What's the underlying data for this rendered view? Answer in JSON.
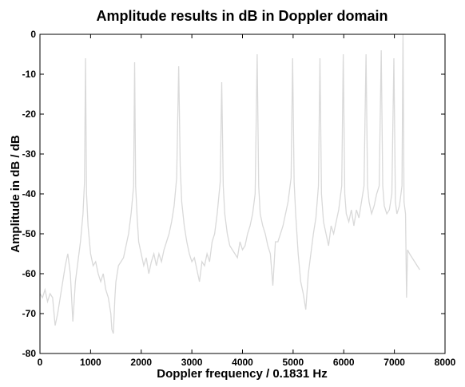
{
  "chart_data": {
    "type": "line",
    "title": "Amplitude results in dB in Doppler domain",
    "xlabel": "Doppler frequency / 0.1831 Hz",
    "ylabel": "Amplitude in dB / dB",
    "x": [
      0,
      50,
      100,
      150,
      200,
      250,
      300,
      350,
      400,
      450,
      500,
      550,
      600,
      650,
      700,
      750,
      800,
      850,
      880,
      900,
      920,
      950,
      1000,
      1050,
      1100,
      1150,
      1200,
      1250,
      1300,
      1350,
      1400,
      1420,
      1450,
      1480,
      1500,
      1550,
      1600,
      1650,
      1700,
      1750,
      1800,
      1850,
      1870,
      1890,
      1920,
      1950,
      2000,
      2050,
      2100,
      2150,
      2200,
      2250,
      2300,
      2350,
      2400,
      2450,
      2500,
      2550,
      2600,
      2650,
      2700,
      2740,
      2770,
      2800,
      2850,
      2900,
      2950,
      3000,
      3050,
      3100,
      3150,
      3200,
      3250,
      3300,
      3350,
      3400,
      3450,
      3500,
      3560,
      3590,
      3620,
      3650,
      3700,
      3750,
      3800,
      3850,
      3900,
      3950,
      4000,
      4050,
      4100,
      4150,
      4200,
      4250,
      4290,
      4320,
      4350,
      4400,
      4450,
      4500,
      4550,
      4600,
      4650,
      4700,
      4750,
      4800,
      4850,
      4900,
      4960,
      4990,
      5020,
      5050,
      5100,
      5150,
      5200,
      5250,
      5300,
      5350,
      5400,
      5450,
      5500,
      5530,
      5560,
      5600,
      5650,
      5700,
      5750,
      5800,
      5850,
      5900,
      5960,
      5990,
      6020,
      6050,
      6100,
      6150,
      6200,
      6250,
      6300,
      6350,
      6400,
      6440,
      6470,
      6500,
      6550,
      6600,
      6650,
      6700,
      6740,
      6770,
      6800,
      6850,
      6900,
      6950,
      6990,
      7020,
      7050,
      7100,
      7150,
      7170,
      7190,
      7220,
      7240,
      7260,
      7300,
      7350,
      7400,
      7450,
      7500
    ],
    "series": [
      {
        "name": "Amplitude",
        "color": "#d9d9d9",
        "values": [
          -65,
          -66,
          -64,
          -67,
          -65,
          -66,
          -73,
          -70,
          -66,
          -62,
          -58,
          -55,
          -60,
          -72,
          -62,
          -57,
          -52,
          -45,
          -37,
          -6,
          -40,
          -48,
          -55,
          -58,
          -57,
          -60,
          -62,
          -60,
          -64,
          -66,
          -70,
          -74,
          -75,
          -66,
          -62,
          -58,
          -57,
          -56,
          -53,
          -50,
          -45,
          -38,
          -7,
          -38,
          -46,
          -52,
          -55,
          -58,
          -56,
          -60,
          -57,
          -55,
          -58,
          -55,
          -57,
          -54,
          -52,
          -50,
          -47,
          -43,
          -36,
          -8,
          -33,
          -42,
          -48,
          -52,
          -55,
          -57,
          -56,
          -59,
          -62,
          -57,
          -58,
          -55,
          -57,
          -52,
          -50,
          -45,
          -37,
          -12,
          -38,
          -45,
          -50,
          -53,
          -54,
          -55,
          -56,
          -52,
          -54,
          -53,
          -50,
          -48,
          -45,
          -40,
          -5,
          -38,
          -45,
          -48,
          -50,
          -53,
          -55,
          -63,
          -52,
          -52,
          -50,
          -48,
          -45,
          -42,
          -36,
          -6,
          -37,
          -45,
          -55,
          -62,
          -65,
          -69,
          -60,
          -55,
          -50,
          -46,
          -38,
          -6,
          -40,
          -47,
          -50,
          -53,
          -48,
          -50,
          -47,
          -44,
          -38,
          -5,
          -40,
          -45,
          -47,
          -44,
          -48,
          -44,
          -46,
          -42,
          -38,
          -5,
          -38,
          -42,
          -45,
          -43,
          -40,
          -38,
          -4,
          -38,
          -43,
          -45,
          -44,
          -40,
          -6,
          -42,
          -45,
          -43,
          -38,
          0,
          -42,
          -45,
          -66,
          -54,
          -55,
          -56,
          -57,
          -58,
          -59
        ]
      }
    ],
    "xlim": [
      0,
      8000
    ],
    "xticks": [
      0,
      1000,
      2000,
      3000,
      4000,
      5000,
      6000,
      7000,
      8000
    ],
    "ylim": [
      -80,
      0
    ],
    "yticks": [
      -80,
      -70,
      -60,
      -50,
      -40,
      -30,
      -20,
      -10,
      0
    ]
  }
}
